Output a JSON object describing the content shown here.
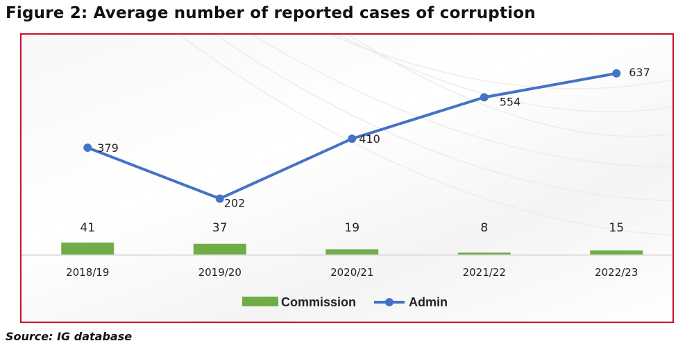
{
  "title": "Figure 2: Average number of reported cases of corruption",
  "source": "Source: IG database",
  "colors": {
    "commission": "#70ad47",
    "admin": "#4472c4",
    "frame": "#c8102e"
  },
  "chart_data": {
    "type": "bar+line",
    "categories": [
      "2018/19",
      "2019/20",
      "2020/21",
      "2021/22",
      "2022/23"
    ],
    "series": [
      {
        "name": "Commission",
        "type": "bar",
        "values": [
          41,
          37,
          19,
          8,
          15
        ]
      },
      {
        "name": "Admin",
        "type": "line",
        "values": [
          379,
          202,
          410,
          554,
          637
        ]
      }
    ],
    "legend_position": "bottom",
    "grid": false
  }
}
